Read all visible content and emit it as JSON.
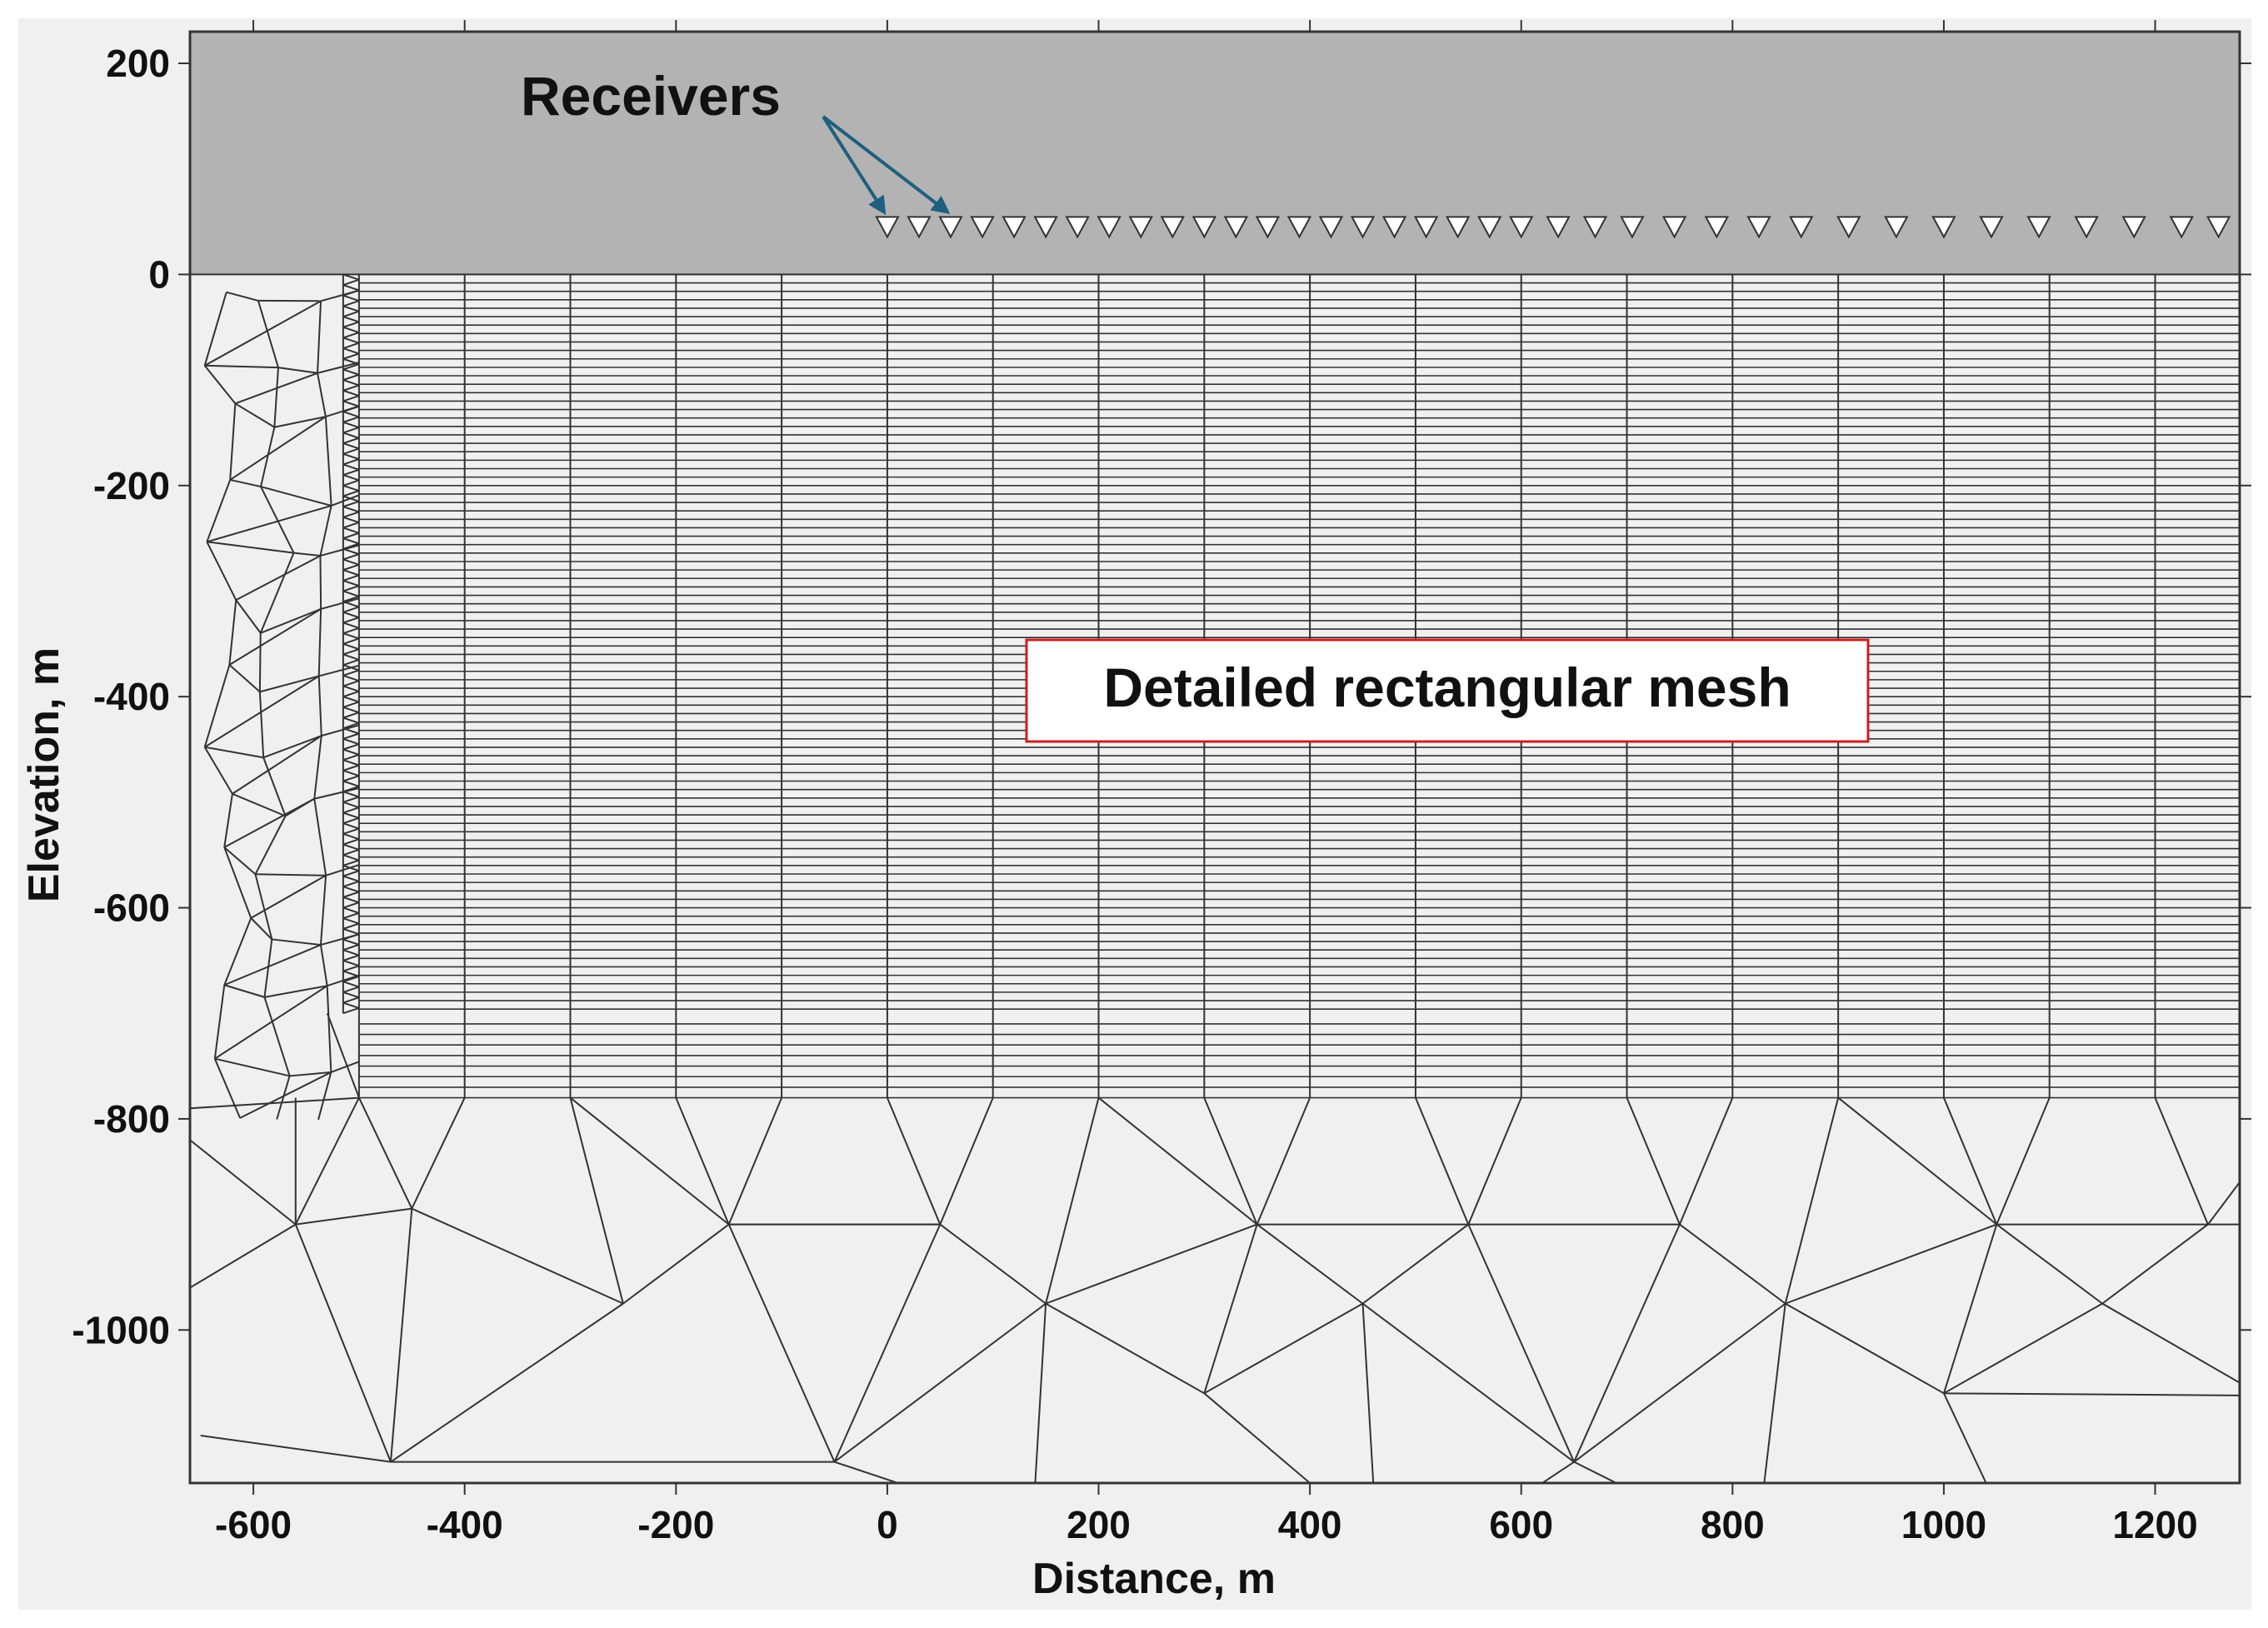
{
  "figure": {
    "xlabel": "Distance, m",
    "ylabel": "Elevation, m",
    "x_ticks": [
      -600,
      -400,
      -200,
      0,
      200,
      400,
      600,
      800,
      1000,
      1200
    ],
    "y_ticks": [
      200,
      0,
      -200,
      -400,
      -600,
      -800,
      -1000
    ],
    "xlim": [
      -660,
      1280
    ],
    "ylim": [
      -1145,
      230
    ],
    "annotations": {
      "receivers_label": "Receivers",
      "mesh_label": "Detailed rectangular mesh"
    },
    "regions": {
      "air": {
        "x": [
          -660,
          1280
        ],
        "y": [
          0,
          230
        ]
      },
      "rect_mesh": {
        "x": [
          -500,
          1280
        ],
        "y": [
          -780,
          0
        ]
      }
    },
    "mesh": {
      "vertical_lines_x": [
        -400,
        -300,
        -200,
        -100,
        0,
        100,
        200,
        300,
        400,
        500,
        600,
        700,
        800,
        900,
        1000,
        1100,
        1200
      ],
      "layer_step_m": 8,
      "fine_bottom_m": -700,
      "coarse_layers_m": [
        -710,
        -720,
        -730,
        -740,
        -750,
        -760,
        -770,
        -780
      ]
    },
    "receivers_x": [
      0,
      30,
      60,
      90,
      120,
      150,
      180,
      210,
      240,
      270,
      300,
      330,
      360,
      390,
      420,
      450,
      480,
      510,
      540,
      570,
      600,
      635,
      670,
      705,
      745,
      785,
      825,
      865,
      910,
      955,
      1000,
      1045,
      1090,
      1135,
      1180,
      1225,
      1260
    ],
    "receiver_elevation_m": 45,
    "colors": {
      "background": "#f0f0f0",
      "air": "#b3b3b3",
      "mesh_line": "#333333",
      "arrow": "#1f5f7f",
      "label_border": "#cc1f1f"
    }
  }
}
